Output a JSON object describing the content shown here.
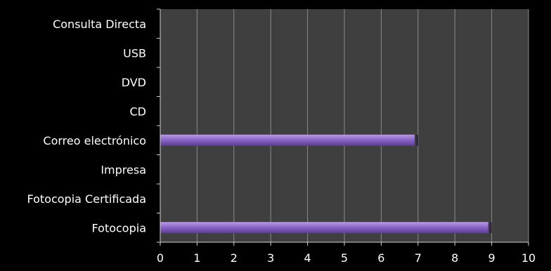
{
  "chart_data": {
    "type": "bar",
    "orientation": "horizontal",
    "categories": [
      "Consulta Directa",
      "USB",
      "DVD",
      "CD",
      "Correo electrónico",
      "Impresa",
      "Fotocopia Certificada",
      "Fotocopia"
    ],
    "values": [
      0,
      0,
      0,
      0,
      7,
      0,
      0,
      9
    ],
    "xlim": [
      0,
      10
    ],
    "xticks": [
      "0",
      "1",
      "2",
      "3",
      "4",
      "5",
      "6",
      "7",
      "8",
      "9",
      "10"
    ],
    "grid": "vertical",
    "legend": "none",
    "title": "",
    "xlabel": "",
    "ylabel": "",
    "colors": {
      "background": "#000000",
      "plot_area": "#3f3f3f",
      "gridline": "#8a8a8a",
      "axis": "#cfcfcf",
      "bar_light": "#b99be3",
      "bar": "#8c68c8",
      "bar_dark": "#5b3c92",
      "bar_end": "#2e2a36",
      "text": "#ffffff"
    }
  }
}
